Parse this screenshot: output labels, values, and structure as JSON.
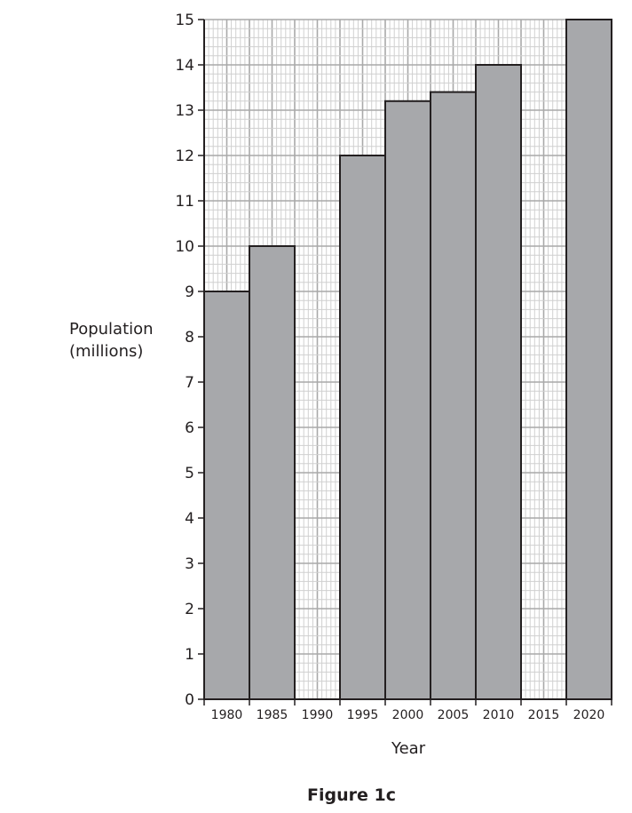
{
  "chart_data": {
    "type": "bar",
    "title": "",
    "caption": "Figure 1c",
    "xlabel": "Year",
    "ylabel_line1": "Population",
    "ylabel_line2": "(millions)",
    "categories": [
      "1980",
      "1985",
      "1990",
      "1995",
      "2000",
      "2005",
      "2010",
      "2015",
      "2020"
    ],
    "values": [
      9,
      10,
      null,
      12,
      13.2,
      13.4,
      14,
      null,
      15
    ],
    "ylim": [
      0,
      15
    ],
    "yticks": [
      0,
      1,
      2,
      3,
      4,
      5,
      6,
      7,
      8,
      9,
      10,
      11,
      12,
      13,
      14,
      15
    ],
    "grid": true,
    "legend": null,
    "bar_color": "#a7a8ab",
    "bar_edge_color": "#231f20",
    "grid_minor_color": "#d0d0d0",
    "grid_major_color": "#a9a9a9"
  }
}
